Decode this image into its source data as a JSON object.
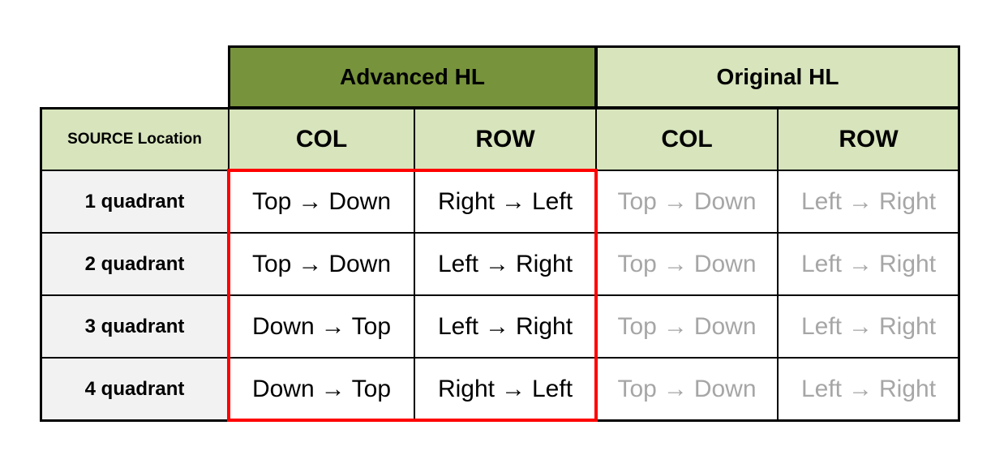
{
  "groups": {
    "advanced": "Advanced HL",
    "original": "Original HL"
  },
  "headers": {
    "source": "SOURCE Location",
    "adv_col": "COL",
    "adv_row": "ROW",
    "orig_col": "COL",
    "orig_row": "ROW"
  },
  "arrow": "→",
  "rows": [
    {
      "label": "1 quadrant",
      "adv_col": {
        "from": "Top",
        "to": "Down"
      },
      "adv_row": {
        "from": "Right",
        "to": "Left"
      },
      "orig_col": {
        "from": "Top",
        "to": "Down"
      },
      "orig_row": {
        "from": "Left",
        "to": "Right"
      }
    },
    {
      "label": "2 quadrant",
      "adv_col": {
        "from": "Top",
        "to": "Down"
      },
      "adv_row": {
        "from": "Left",
        "to": "Right"
      },
      "orig_col": {
        "from": "Top",
        "to": "Down"
      },
      "orig_row": {
        "from": "Left",
        "to": "Right"
      }
    },
    {
      "label": "3 quadrant",
      "adv_col": {
        "from": "Down",
        "to": "Top"
      },
      "adv_row": {
        "from": "Left",
        "to": "Right"
      },
      "orig_col": {
        "from": "Top",
        "to": "Down"
      },
      "orig_row": {
        "from": "Left",
        "to": "Right"
      }
    },
    {
      "label": "4 quadrant",
      "adv_col": {
        "from": "Down",
        "to": "Top"
      },
      "adv_row": {
        "from": "Right",
        "to": "Left"
      },
      "orig_col": {
        "from": "Top",
        "to": "Down"
      },
      "orig_row": {
        "from": "Left",
        "to": "Right"
      }
    }
  ],
  "colors": {
    "advanced_header": "#77933c",
    "light_green": "#d7e4bc",
    "label_bg": "#f2f2f2",
    "muted_text": "#a6a6a6",
    "highlight_border": "#ff0000"
  }
}
